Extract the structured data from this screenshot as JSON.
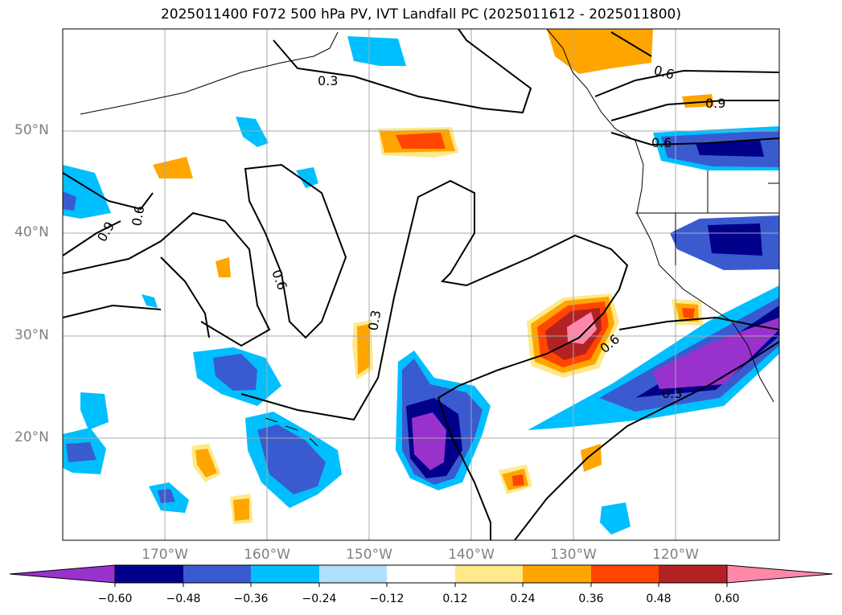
{
  "title": "2025011400 F072 500 hPa PV, IVT Landfall PC (2025011612 - 2025011800)",
  "lat_labels": [
    "50°N",
    "40°N",
    "30°N",
    "20°N"
  ],
  "lon_labels": [
    "170°W",
    "160°W",
    "150°W",
    "140°W",
    "130°W",
    "120°W"
  ],
  "contour_labels": [
    "0.3",
    "0.6",
    "0.9",
    "0.6",
    "0.9",
    "0.6",
    "0.6",
    "0.3",
    "0.6",
    "0.3"
  ],
  "colorbar": {
    "tick_labels": [
      "−0.60",
      "−0.48",
      "−0.36",
      "−0.24",
      "−0.12",
      "0.12",
      "0.24",
      "0.36",
      "0.48",
      "0.60"
    ],
    "colors": [
      "#9932cc",
      "#00008b",
      "#3a5bd0",
      "#00bfff",
      "#b0e0fa",
      "#ffffff",
      "#ffe98a",
      "#ffa500",
      "#ff4500",
      "#b22222",
      "#ff88aa"
    ]
  }
}
